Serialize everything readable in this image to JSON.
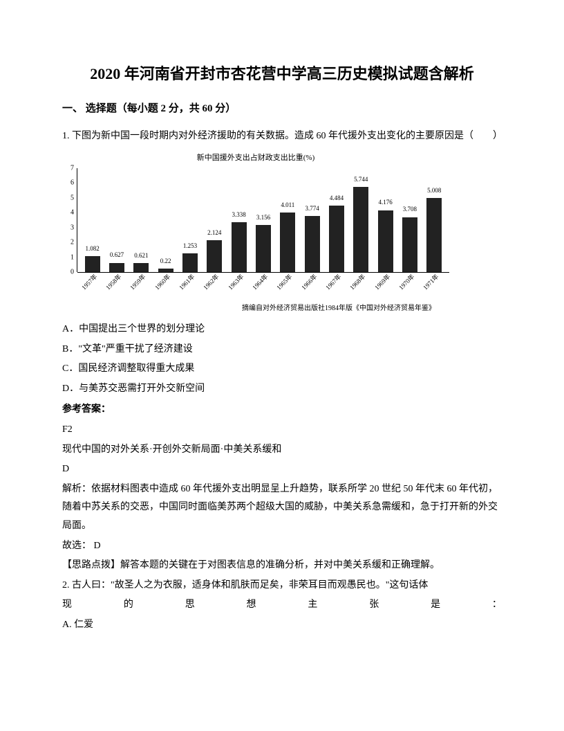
{
  "title": "2020 年河南省开封市杏花营中学高三历史模拟试题含解析",
  "section": "一、 选择题（每小题 2 分，共 60 分）",
  "q1": {
    "stem": "1. 下图为新中国一段时期内对外经济援助的有关数据。造成 60 年代援外支出变化的主要原因是（　　）",
    "chart_title": "新中国援外支出占财政支出比重(%)",
    "y_ticks": [
      0,
      1,
      2,
      3,
      4,
      5,
      6,
      7
    ],
    "y_max": 7,
    "bars": [
      {
        "year": "1957年",
        "value": 1.082
      },
      {
        "year": "1958年",
        "value": 0.627
      },
      {
        "year": "1959年",
        "value": 0.621
      },
      {
        "year": "1960年",
        "value": 0.22
      },
      {
        "year": "1961年",
        "value": 1.253
      },
      {
        "year": "1962年",
        "value": 2.124
      },
      {
        "year": "1963年",
        "value": 3.338
      },
      {
        "year": "1964年",
        "value": 3.156
      },
      {
        "year": "1965年",
        "value": 4.011
      },
      {
        "year": "1966年",
        "value": 3.774
      },
      {
        "year": "1967年",
        "value": 4.484
      },
      {
        "year": "1968年",
        "value": 5.744
      },
      {
        "year": "1969年",
        "value": 4.176
      },
      {
        "year": "1970年",
        "value": 3.708
      },
      {
        "year": "1971年",
        "value": 5.008
      }
    ],
    "bar_color": "#222222",
    "chart_source": "摘编自对外经济贸易出版社1984年版《中国对外经济贸易年鉴》",
    "opt_a": "A．中国提出三个世界的划分理论",
    "opt_b": "B．\"文革\"严重干扰了经济建设",
    "opt_c": "C．国民经济调整取得重大成果",
    "opt_d": "D．与美苏交恶需打开外交新空间",
    "answer_label": "参考答案：",
    "ans_code": "F2",
    "ans_topic": "现代中国的对外关系·开创外交新局面·中美关系缓和",
    "ans_letter": "D",
    "explain": "解析：依据材料图表中造成 60 年代援外支出明显呈上升趋势，联系所学 20 世纪 50 年代末 60 年代初，随着中苏关系的交恶，中国同时面临美苏两个超级大国的威胁，中美关系急需缓和，急于打开新的外交局面。",
    "choice": "故选： D",
    "tip": "【思路点拨】解答本题的关键在于对图表信息的准确分析，并对中美关系缓和正确理解。"
  },
  "q2": {
    "stem_a": "2. 古人曰：\"故圣人之为衣服，适身体和肌肤而足矣，非荣耳目而观愚民也。\"这句话体",
    "stem_b_chars": [
      "现",
      "的",
      "思",
      "想",
      "主",
      "张",
      "是",
      "："
    ],
    "opt_a": "A. 仁爱"
  }
}
